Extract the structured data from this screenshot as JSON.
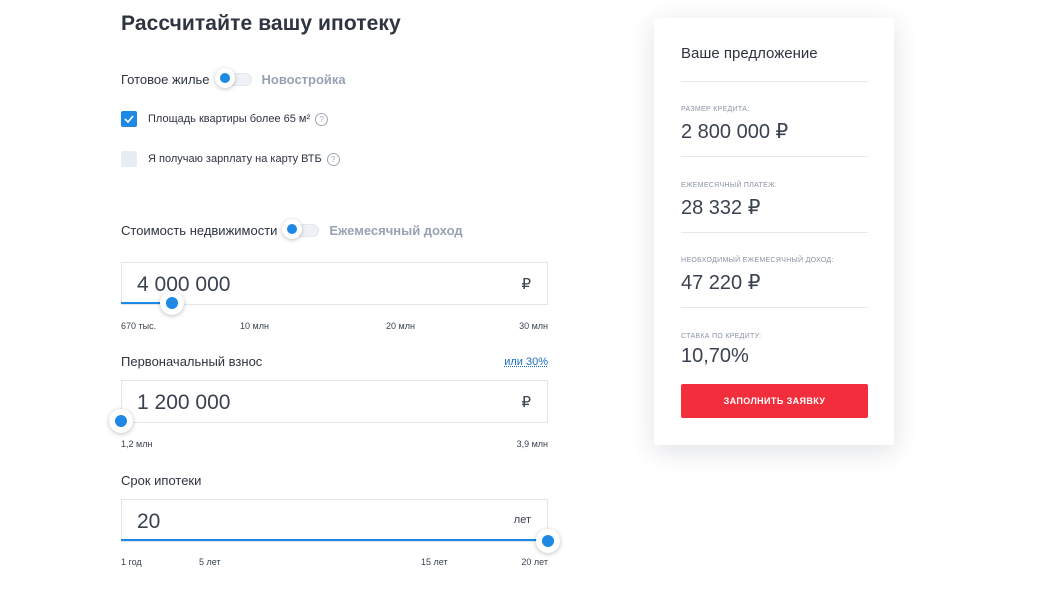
{
  "calculator": {
    "title": "Рассчитайте вашу ипотеку",
    "property_toggle": {
      "left_label": "Готовое жилье",
      "right_label": "Новостройка"
    },
    "options": [
      {
        "label": "Площадь квартиры более 65 м²",
        "checked": true,
        "help": "?"
      },
      {
        "label": "Я получаю зарплату на карту ВТБ",
        "checked": false,
        "help": "?"
      }
    ],
    "calc_toggle": {
      "left_label": "Стоимость недвижимости",
      "right_label": "Ежемесячный доход"
    },
    "property_cost": {
      "value": "4 000 000",
      "unit": "₽",
      "slider_fraction": 0.12,
      "ticks": [
        "670 тыс.",
        "10 млн",
        "20 млн",
        "30 млн"
      ]
    },
    "down_payment": {
      "label": "Первоначальный взнос",
      "link": "или 30%",
      "value": "1 200 000",
      "unit": "₽",
      "slider_fraction": 0.0,
      "ticks": [
        "1,2 млн",
        "3,9 млн"
      ]
    },
    "term": {
      "label": "Срок ипотеки",
      "value": "20",
      "unit": "лет",
      "slider_fraction": 1.0,
      "ticks": [
        "1 год",
        "5 лет",
        "15 лет",
        "20 лет"
      ]
    }
  },
  "offer": {
    "title": "Ваше предложение",
    "metrics": [
      {
        "label": "РАЗМЕР КРЕДИТА:",
        "value": "2 800 000 ₽"
      },
      {
        "label": "ЕЖЕМЕСЯЧНЫЙ ПЛАТЕЖ:",
        "value": "28 332 ₽"
      },
      {
        "label": "НЕОБХОДИМЫЙ ЕЖЕМЕСЯЧНЫЙ ДОХОД:",
        "value": "47 220 ₽"
      },
      {
        "label": "СТАВКА ПО КРЕДИТУ:",
        "value": "10,70%"
      }
    ],
    "cta_label": "ЗАПОЛНИТЬ ЗАЯВКУ"
  },
  "colors": {
    "accent": "#1e88e5",
    "cta": "#f22e3c"
  }
}
